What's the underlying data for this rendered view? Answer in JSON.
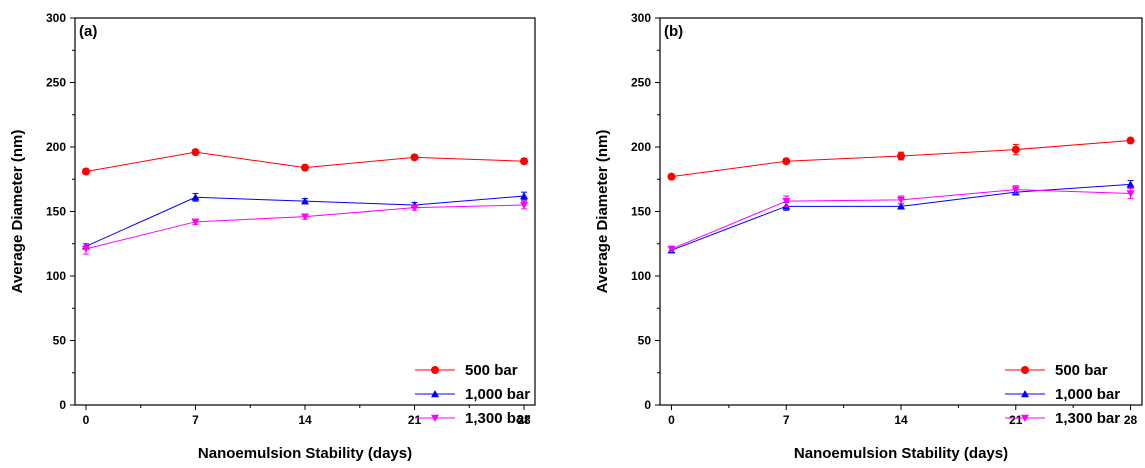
{
  "chart_data": [
    {
      "type": "line",
      "panel_label": "(a)",
      "xlabel": "Nanoemulsion Stability (days)",
      "ylabel": "Average Diameter (nm)",
      "x": [
        0,
        7,
        14,
        21,
        28
      ],
      "xticks": [
        "0",
        "7",
        "14",
        "21",
        "28"
      ],
      "yticks": [
        "0",
        "50",
        "100",
        "150",
        "200",
        "250",
        "300"
      ],
      "xlim": [
        -0.7,
        28.7
      ],
      "ylim": [
        0,
        300
      ],
      "grid": false,
      "legend_position": "bottom-right",
      "series": [
        {
          "name": "500 bar",
          "color": "#ff0000",
          "marker": "circle",
          "values": [
            181,
            196,
            184,
            192,
            189
          ],
          "errors": [
            2,
            2,
            2,
            2,
            2
          ]
        },
        {
          "name": "1,000 bar",
          "color": "#0000ff",
          "marker": "triangle-up",
          "values": [
            123,
            161,
            158,
            155,
            162
          ],
          "errors": [
            2,
            3,
            2,
            2,
            3
          ]
        },
        {
          "name": "1,300 bar",
          "color": "#ff00ff",
          "marker": "triangle-down",
          "values": [
            121,
            142,
            146,
            153,
            155
          ],
          "errors": [
            4,
            2,
            2,
            2,
            3
          ]
        }
      ]
    },
    {
      "type": "line",
      "panel_label": "(b)",
      "xlabel": "Nanoemulsion Stability (days)",
      "ylabel": "Average Diameter (nm)",
      "x": [
        0,
        7,
        14,
        21,
        28
      ],
      "xticks": [
        "0",
        "7",
        "14",
        "21",
        "28"
      ],
      "yticks": [
        "0",
        "50",
        "100",
        "150",
        "200",
        "250",
        "300"
      ],
      "xlim": [
        -0.7,
        28.7
      ],
      "ylim": [
        0,
        300
      ],
      "grid": false,
      "legend_position": "bottom-right",
      "series": [
        {
          "name": "500 bar",
          "color": "#ff0000",
          "marker": "circle",
          "values": [
            177,
            189,
            193,
            198,
            205
          ],
          "errors": [
            2,
            2,
            3,
            4,
            2
          ]
        },
        {
          "name": "1,000 bar",
          "color": "#0000ff",
          "marker": "triangle-up",
          "values": [
            120,
            154,
            154,
            165,
            171
          ],
          "errors": [
            2,
            3,
            2,
            2,
            3
          ]
        },
        {
          "name": "1,300 bar",
          "color": "#ff00ff",
          "marker": "triangle-down",
          "values": [
            121,
            158,
            159,
            167,
            164
          ],
          "errors": [
            2,
            4,
            3,
            3,
            4
          ]
        }
      ]
    }
  ]
}
